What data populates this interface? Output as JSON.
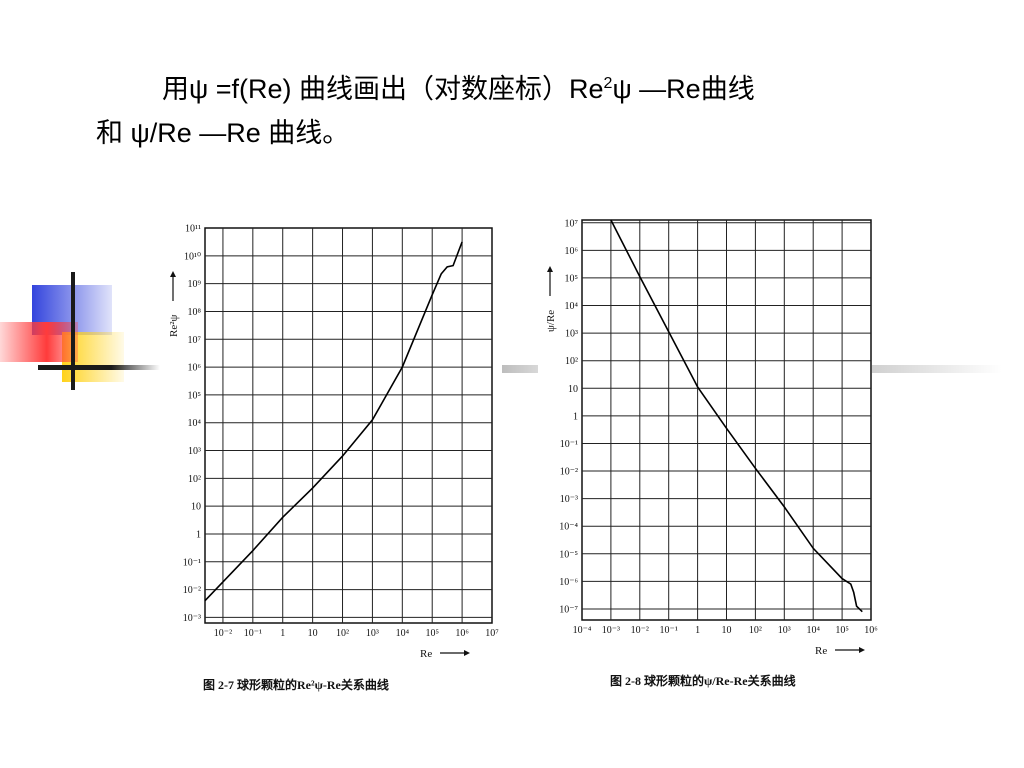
{
  "slide": {
    "line1_a": "用ψ  =f(Re)  曲线画出（对数座标）Re",
    "line1_sup": "2",
    "line1_b": "ψ  —Re曲线",
    "line2": "和  ψ/Re —Re 曲线。"
  },
  "colors": {
    "deco_blue": "#3344dd",
    "deco_yellow": "#ffd21a",
    "deco_red": "#ff3b3b",
    "deco_line": "#1a1a1a",
    "bar_grey": "#c0c0c0"
  },
  "chart_data": [
    {
      "type": "line",
      "caption": "图  2-7    球形颗粒的Re²ψ-Re关系曲线",
      "xlabel": "Re",
      "ylabel": "Re²ψ",
      "x_ticks": [
        "10⁻²",
        "10⁻¹",
        "1",
        "10",
        "10²",
        "10³",
        "10⁴",
        "10⁵",
        "10⁶",
        "10⁷"
      ],
      "y_ticks": [
        "10⁻³",
        "10⁻²",
        "10⁻¹",
        "1",
        "10",
        "10²",
        "10³",
        "10⁴",
        "10⁵",
        "10⁶",
        "10⁷",
        "10⁸",
        "10⁹",
        "10¹⁰",
        "10¹¹"
      ],
      "xlog_range": [
        -2.6,
        7
      ],
      "ylog_range": [
        -3.2,
        11
      ],
      "series": [
        {
          "log10_x": [
            -2.6,
            -1,
            0,
            1,
            2,
            3,
            4,
            5,
            5.3,
            5.5,
            5.7,
            6.0
          ],
          "log10_y": [
            -2.4,
            -0.6,
            0.6,
            1.65,
            2.8,
            4.1,
            6.0,
            8.6,
            9.35,
            9.6,
            9.65,
            10.5
          ]
        }
      ]
    },
    {
      "type": "line",
      "caption": "图  2-8    球形颗粒的ψ/Re-Re关系曲线",
      "xlabel": "Re",
      "ylabel": "ψ/Re",
      "x_ticks": [
        "10⁻⁴",
        "10⁻³",
        "10⁻²",
        "10⁻¹",
        "1",
        "10",
        "10²",
        "10³",
        "10⁴",
        "10⁵",
        "10⁶"
      ],
      "y_ticks": [
        "10⁻⁷",
        "10⁻⁶",
        "10⁻⁵",
        "10⁻⁴",
        "10⁻³",
        "10⁻²",
        "10⁻¹",
        "1",
        "10",
        "10²",
        "10³",
        "10⁴",
        "10⁵",
        "10⁶",
        "10⁷"
      ],
      "xlog_range": [
        -4,
        6
      ],
      "ylog_range": [
        -7.4,
        7.1
      ],
      "series": [
        {
          "log10_x": [
            -3,
            -2,
            -1,
            0,
            1,
            2,
            3,
            4,
            5,
            5.3,
            5.4,
            5.5,
            5.7
          ],
          "log10_y": [
            7.1,
            5.05,
            3.05,
            1.05,
            -0.45,
            -1.9,
            -3.3,
            -4.8,
            -5.9,
            -6.1,
            -6.4,
            -6.9,
            -7.1
          ]
        }
      ]
    }
  ]
}
